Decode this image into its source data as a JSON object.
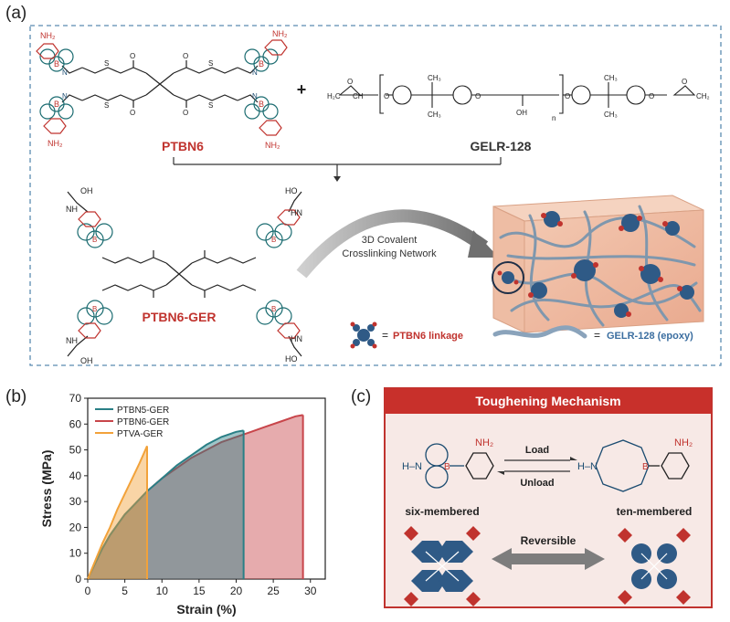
{
  "panels": {
    "a": "(a)",
    "b": "(b)",
    "c": "(c)"
  },
  "panel_a": {
    "monomer_label": "PTBN6",
    "epoxy_label": "GELR-128",
    "plus": "+",
    "product_label": "PTBN6-GER",
    "arrow_text_line1": "3D Covalent",
    "arrow_text_line2": "Crosslinking Network",
    "legend_linkage_eq": "=",
    "legend_linkage": "PTBN6 linkage",
    "legend_epoxy_eq": "=",
    "legend_epoxy": "GELR-128 (epoxy)",
    "chem": {
      "nh2": "NH₂",
      "n": "N",
      "b": "B",
      "o": "O",
      "s": "S",
      "oh": "OH",
      "ho": "HO",
      "nh": "NH",
      "hn": "HN",
      "ch3": "CH₃",
      "h2": "H₂",
      "h": "H",
      "c": "C",
      "sub_n": "n",
      "h2c": "H₂C",
      "ch": "CH",
      "ch2": "CH₂"
    }
  },
  "panel_c": {
    "title": "Toughening Mechanism",
    "load": "Load",
    "unload": "Unload",
    "six": "six-membered",
    "ten": "ten-membered",
    "reversible": "Reversible",
    "nh2": "NH₂",
    "hn": "H–N",
    "n": "N",
    "b": "B",
    "o": "O"
  },
  "colors": {
    "ptbn5": "#2a7f86",
    "ptbn6": "#c8454a",
    "ptva": "#f2a23a",
    "red_accent": "#c0332e",
    "blue_node": "#2f5a86",
    "dashed_border": "#5a8bb0"
  },
  "chart_data": {
    "type": "area",
    "xlabel": "Strain (%)",
    "ylabel": "Stress (MPa)",
    "xlim": [
      0,
      32
    ],
    "ylim": [
      0,
      70
    ],
    "xticks": [
      0,
      5,
      10,
      15,
      20,
      25,
      30
    ],
    "yticks": [
      0,
      10,
      20,
      30,
      40,
      50,
      60,
      70
    ],
    "legend_position": "top-left",
    "series": [
      {
        "name": "PTBN5-GER",
        "color": "#2a7f86",
        "x": [
          0,
          1,
          2,
          3,
          4,
          5,
          6,
          7,
          8,
          10,
          12,
          14,
          16,
          18,
          20,
          21
        ],
        "y": [
          0,
          6,
          12,
          17,
          21,
          25,
          28,
          31,
          34,
          39,
          44,
          48,
          52,
          55,
          57,
          57.5
        ]
      },
      {
        "name": "PTBN6-GER",
        "color": "#c8454a",
        "x": [
          0,
          1,
          2,
          3,
          4,
          5,
          6,
          7,
          8,
          10,
          12,
          14,
          16,
          18,
          20,
          22,
          24,
          26,
          28,
          29
        ],
        "y": [
          0,
          6,
          12,
          17,
          21,
          25,
          28,
          31,
          34,
          39,
          43,
          47,
          50,
          53,
          55,
          57,
          59,
          61,
          63,
          63.5
        ]
      },
      {
        "name": "PTVA-GER",
        "color": "#f2a23a",
        "x": [
          0,
          1,
          2,
          3,
          4,
          5,
          6,
          7,
          8
        ],
        "y": [
          0,
          7,
          14,
          20,
          27,
          33,
          39,
          45,
          51.5
        ]
      }
    ]
  }
}
